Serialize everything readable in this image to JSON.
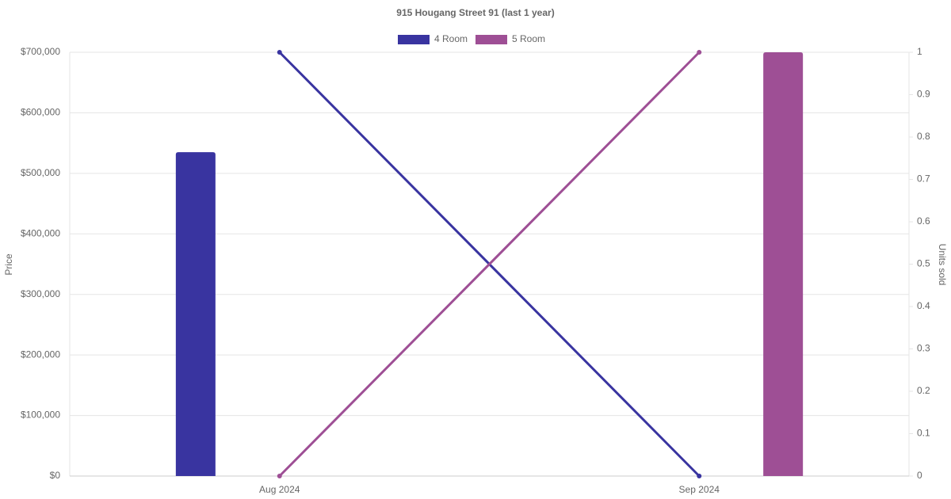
{
  "chart_data": {
    "type": "bar-line",
    "title": "915 Hougang Street 91 (last 1 year)",
    "y_label": "Price",
    "y2_label": "Units sold",
    "categories": [
      "Aug 2024",
      "Sep 2024"
    ],
    "series": [
      {
        "name": "4 Room",
        "color": "#3934a0",
        "values": [
          535000,
          null
        ],
        "units": [
          1,
          0
        ]
      },
      {
        "name": "5 Room",
        "color": "#9e4f95",
        "values": [
          null,
          700000
        ],
        "units": [
          0,
          1
        ]
      }
    ],
    "ylim": [
      0,
      700000
    ],
    "yticks": [
      {
        "value": 0,
        "label": "$0"
      },
      {
        "value": 100000,
        "label": "$100,000"
      },
      {
        "value": 200000,
        "label": "$200,000"
      },
      {
        "value": 300000,
        "label": "$300,000"
      },
      {
        "value": 400000,
        "label": "$400,000"
      },
      {
        "value": 500000,
        "label": "$500,000"
      },
      {
        "value": 600000,
        "label": "$600,000"
      },
      {
        "value": 700000,
        "label": "$700,000"
      }
    ],
    "y2lim": [
      0,
      1
    ],
    "y2ticks": [
      0,
      0.1,
      0.2,
      0.3,
      0.4,
      0.5,
      0.6,
      0.7,
      0.8,
      0.9,
      1
    ],
    "grid": true,
    "legend": "top"
  }
}
